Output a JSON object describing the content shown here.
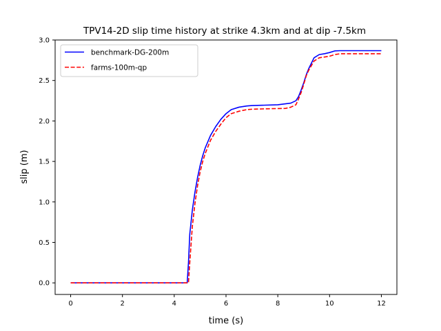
{
  "chart_data": {
    "type": "line",
    "title": "TPV14-2D slip time history at strike 4.3km and at dip -7.5km",
    "xlabel": "time (s)",
    "ylabel": "slip (m)",
    "xlim": [
      -0.6,
      12.6
    ],
    "ylim": [
      -0.143,
      3.0
    ],
    "xticks": [
      0,
      2,
      4,
      6,
      8,
      10,
      12
    ],
    "xtick_labels": [
      "0",
      "2",
      "4",
      "6",
      "8",
      "10",
      "12"
    ],
    "yticks": [
      0.0,
      0.5,
      1.0,
      1.5,
      2.0,
      2.5,
      3.0
    ],
    "ytick_labels": [
      "0.0",
      "0.5",
      "1.0",
      "1.5",
      "2.0",
      "2.5",
      "3.0"
    ],
    "grid": false,
    "legend_position": "upper-left",
    "series": [
      {
        "name": "benchmark-DG-200m",
        "color": "#0000ff",
        "style": "solid",
        "x": [
          0,
          4.5,
          4.55,
          4.6,
          4.7,
          4.8,
          4.9,
          5.0,
          5.1,
          5.2,
          5.4,
          5.6,
          5.8,
          6.0,
          6.2,
          6.5,
          6.8,
          7.0,
          7.5,
          8.0,
          8.5,
          8.7,
          8.8,
          8.9,
          9.0,
          9.1,
          9.2,
          9.4,
          9.6,
          9.8,
          10.0,
          10.2,
          10.4,
          10.6,
          11.0,
          12.0
        ],
        "y": [
          0,
          0,
          0.25,
          0.6,
          0.9,
          1.12,
          1.3,
          1.45,
          1.57,
          1.67,
          1.82,
          1.93,
          2.02,
          2.09,
          2.14,
          2.17,
          2.185,
          2.19,
          2.195,
          2.2,
          2.22,
          2.25,
          2.3,
          2.38,
          2.47,
          2.57,
          2.65,
          2.78,
          2.82,
          2.83,
          2.845,
          2.865,
          2.868,
          2.868,
          2.868,
          2.868
        ]
      },
      {
        "name": "farms-100m-qp",
        "color": "#ff0000",
        "style": "dashed",
        "x": [
          0,
          4.55,
          4.6,
          4.7,
          4.8,
          4.9,
          5.0,
          5.1,
          5.2,
          5.4,
          5.6,
          5.8,
          6.0,
          6.2,
          6.5,
          6.8,
          7.0,
          7.5,
          8.0,
          8.3,
          8.5,
          8.7,
          8.8,
          8.9,
          9.0,
          9.1,
          9.2,
          9.4,
          9.6,
          9.8,
          10.0,
          10.2,
          10.4,
          10.6,
          11.0,
          12.0
        ],
        "y": [
          0,
          0,
          0.25,
          0.7,
          0.98,
          1.2,
          1.37,
          1.5,
          1.6,
          1.76,
          1.87,
          1.96,
          2.04,
          2.09,
          2.12,
          2.14,
          2.145,
          2.15,
          2.153,
          2.155,
          2.17,
          2.2,
          2.27,
          2.35,
          2.45,
          2.56,
          2.63,
          2.74,
          2.78,
          2.79,
          2.8,
          2.82,
          2.83,
          2.83,
          2.83,
          2.83
        ]
      }
    ]
  }
}
